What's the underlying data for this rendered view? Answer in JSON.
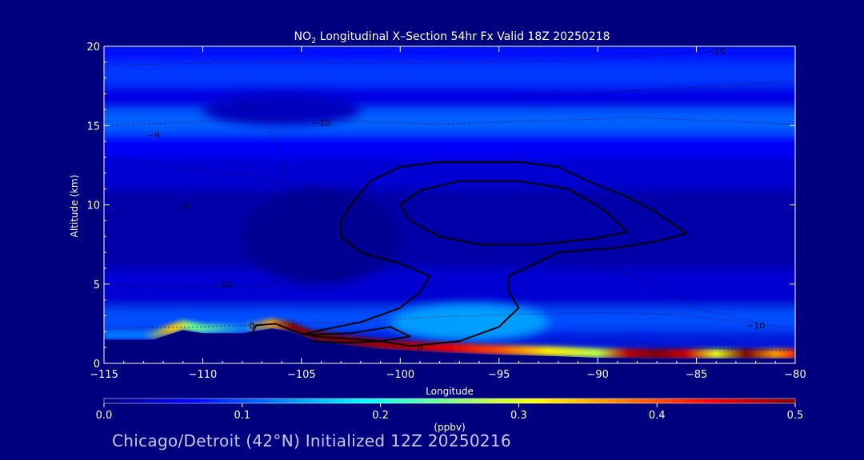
{
  "chart_data": {
    "type": "heatmap",
    "title_prefix": "NO",
    "title_sub": "2",
    "title_rest": " Longitudinal X–Section 54hr  Fx Valid 18Z 20250218",
    "xlabel": "Longitude",
    "ylabel": "Altitude (km)",
    "xlim": [
      -115,
      -80
    ],
    "ylim": [
      0,
      20
    ],
    "x_ticks": [
      -115,
      -110,
      -105,
      -100,
      -95,
      -90,
      -85,
      -80
    ],
    "x_tick_labels": [
      "−115",
      "−110",
      "−105",
      "−100",
      "−95",
      "−90",
      "−85",
      "−80"
    ],
    "y_ticks": [
      0,
      5,
      10,
      15,
      20
    ],
    "y_tick_labels": [
      "0",
      "5",
      "10",
      "15",
      "20"
    ],
    "colorbar": {
      "label": "(ppbv)",
      "range": [
        0.0,
        0.5
      ],
      "ticks": [
        0.0,
        0.1,
        0.2,
        0.3,
        0.4,
        0.5
      ],
      "tick_labels": [
        "0.0",
        "0.1",
        "0.2",
        "0.3",
        "0.4",
        "0.5"
      ],
      "colormap": [
        "#00007f",
        "#0000ff",
        "#0080ff",
        "#00ffff",
        "#80ff80",
        "#ffff00",
        "#ff8000",
        "#ff0000",
        "#800000"
      ]
    },
    "layers": [
      {
        "alt_bottom": 19.0,
        "alt_top": 20.0,
        "value": 0.07
      },
      {
        "alt_bottom": 17.5,
        "alt_top": 19.0,
        "value": 0.09
      },
      {
        "alt_bottom": 16.0,
        "alt_top": 17.5,
        "value": 0.05
      },
      {
        "alt_bottom": 14.5,
        "alt_top": 16.0,
        "value": 0.11
      },
      {
        "alt_bottom": 13.0,
        "alt_top": 14.5,
        "value": 0.06
      },
      {
        "alt_bottom": 11.0,
        "alt_top": 13.0,
        "value": 0.04
      },
      {
        "alt_bottom": 6.0,
        "alt_top": 11.0,
        "value": 0.02
      },
      {
        "alt_bottom": 3.5,
        "alt_top": 6.0,
        "value": 0.04
      },
      {
        "alt_bottom": 2.0,
        "alt_top": 3.5,
        "value": 0.1
      }
    ],
    "blobs": [
      {
        "lon": -96.5,
        "alt": 2.6,
        "r_lon": 4.0,
        "r_alt": 1.2,
        "value": 0.14
      },
      {
        "lon": -106.0,
        "alt": 16.0,
        "r_lon": 4.0,
        "r_alt": 1.0,
        "value": 0.03
      },
      {
        "lon": -104.0,
        "alt": 8.0,
        "r_lon": 4.0,
        "r_alt": 3.0,
        "value": 0.01
      }
    ],
    "terrain": [
      [
        -115,
        1.5
      ],
      [
        -112.5,
        1.5
      ],
      [
        -111,
        2.1
      ],
      [
        -110,
        1.9
      ],
      [
        -108,
        1.9
      ],
      [
        -107.5,
        2.0
      ],
      [
        -106.5,
        2.2
      ],
      [
        -105.5,
        2.0
      ],
      [
        -104.5,
        1.5
      ],
      [
        -103,
        1.2
      ],
      [
        -101,
        0.9
      ],
      [
        -98,
        0.7
      ],
      [
        -95,
        0.55
      ],
      [
        -92,
        0.45
      ],
      [
        -90,
        0.35
      ],
      [
        -87,
        0.3
      ],
      [
        -84,
        0.3
      ],
      [
        -80,
        0.3
      ]
    ],
    "surface_layer": [
      {
        "lon": -113.0,
        "value": 0.12
      },
      {
        "lon": -111.5,
        "value": 0.34
      },
      {
        "lon": -110.5,
        "value": 0.24
      },
      {
        "lon": -108.0,
        "value": 0.12
      },
      {
        "lon": -106.5,
        "value": 0.36
      },
      {
        "lon": -105.5,
        "value": 0.5
      },
      {
        "lon": -103.0,
        "value": 0.5
      },
      {
        "lon": -100.0,
        "value": 0.48
      },
      {
        "lon": -97.5,
        "value": 0.45
      },
      {
        "lon": -95.0,
        "value": 0.4
      },
      {
        "lon": -92.5,
        "value": 0.32
      },
      {
        "lon": -90.0,
        "value": 0.28
      },
      {
        "lon": -88.5,
        "value": 0.47
      },
      {
        "lon": -87.0,
        "value": 0.5
      },
      {
        "lon": -85.5,
        "value": 0.46
      },
      {
        "lon": -84.0,
        "value": 0.3
      },
      {
        "lon": -82.5,
        "value": 0.5
      },
      {
        "lon": -81.0,
        "value": 0.36
      },
      {
        "lon": -80.0,
        "value": 0.42
      }
    ],
    "contours_solid": [
      [
        [
          -102.5,
          10.0
        ],
        [
          -103,
          9.0
        ],
        [
          -103,
          8.0
        ],
        [
          -102,
          7.0
        ],
        [
          -100,
          6.3
        ],
        [
          -98.5,
          5.5
        ],
        [
          -99,
          4.5
        ],
        [
          -100,
          3.5
        ],
        [
          -102,
          2.6
        ],
        [
          -104,
          2.1
        ],
        [
          -105,
          1.8
        ]
      ],
      [
        [
          -102.5,
          10.0
        ],
        [
          -101.5,
          11.5
        ],
        [
          -100,
          12.4
        ],
        [
          -98,
          12.7
        ],
        [
          -94,
          12.7
        ],
        [
          -92,
          12.4
        ],
        [
          -90.5,
          11.5
        ],
        [
          -88.5,
          10.5
        ],
        [
          -87,
          9.5
        ],
        [
          -85.5,
          8.2
        ],
        [
          -87,
          7.7
        ],
        [
          -89,
          7.3
        ],
        [
          -92,
          7.0
        ],
        [
          -94.5,
          5.5
        ],
        [
          -94.5,
          4.5
        ],
        [
          -94.0,
          3.5
        ],
        [
          -95,
          2.3
        ],
        [
          -97,
          1.4
        ],
        [
          -99.5,
          1.1
        ],
        [
          -101,
          1.4
        ],
        [
          -103,
          1.6
        ],
        [
          -104.5,
          1.7
        ]
      ],
      [
        [
          -100,
          10.0
        ],
        [
          -99,
          10.9
        ],
        [
          -97,
          11.5
        ],
        [
          -94,
          11.5
        ],
        [
          -91.5,
          11.0
        ],
        [
          -90.5,
          10.3
        ],
        [
          -89.5,
          9.5
        ],
        [
          -88.5,
          8.3
        ],
        [
          -90,
          7.9
        ],
        [
          -93,
          7.5
        ],
        [
          -96,
          7.5
        ],
        [
          -98,
          8.0
        ],
        [
          -99.5,
          9.0
        ],
        [
          -100,
          10.0
        ]
      ],
      [
        [
          -107.5,
          1.9
        ],
        [
          -107.3,
          2.4
        ],
        [
          -106.3,
          2.5
        ],
        [
          -105.5,
          2.1
        ],
        [
          -104.8,
          1.8
        ],
        [
          -102.5,
          1.9
        ],
        [
          -100.5,
          2.3
        ],
        [
          -99.5,
          1.7
        ],
        [
          -101,
          1.4
        ],
        [
          -103,
          1.3
        ],
        [
          -104.5,
          1.4
        ]
      ]
    ],
    "contours_dashed": [
      [
        [
          -115,
          15.0
        ],
        [
          -111,
          15.2
        ],
        [
          -107,
          15.4
        ],
        [
          -103,
          15.3
        ],
        [
          -98,
          15.1
        ],
        [
          -93,
          15.3
        ],
        [
          -88,
          15.5
        ],
        [
          -84,
          15.3
        ],
        [
          -80,
          15.1
        ]
      ],
      [
        [
          -115,
          13.0
        ],
        [
          -110,
          12.2
        ],
        [
          -106,
          11.5
        ],
        [
          -104,
          11.0
        ],
        [
          -103,
          10.5
        ]
      ],
      [
        [
          -115,
          5.0
        ],
        [
          -111,
          4.8
        ],
        [
          -108,
          4.9
        ],
        [
          -105,
          5.1
        ],
        [
          -103,
          5.6
        ],
        [
          -102.5,
          6.2
        ]
      ],
      [
        [
          -115,
          2.2
        ],
        [
          -110,
          2.3
        ],
        [
          -106,
          2.5
        ],
        [
          -102,
          2.6
        ],
        [
          -99,
          2.9
        ],
        [
          -94,
          3.1
        ],
        [
          -90,
          3.2
        ],
        [
          -86,
          3.1
        ],
        [
          -82,
          2.5
        ],
        [
          -80,
          2.2
        ]
      ],
      [
        [
          -115,
          18.8
        ],
        [
          -108,
          19.0
        ],
        [
          -100,
          18.9
        ],
        [
          -92,
          19.1
        ],
        [
          -86,
          19.5
        ],
        [
          -84,
          20.0
        ]
      ],
      [
        [
          -94,
          16.8
        ],
        [
          -88,
          17.2
        ],
        [
          -84,
          17.5
        ],
        [
          -80,
          17.8
        ]
      ],
      [
        [
          -109,
          17.0
        ],
        [
          -107,
          15.8
        ],
        [
          -106,
          13.0
        ],
        [
          -105.5,
          10.0
        ],
        [
          -106,
          7.0
        ],
        [
          -108,
          5.2
        ]
      ],
      [
        [
          -90,
          6.5
        ],
        [
          -87,
          4.8
        ],
        [
          -85,
          3.5
        ],
        [
          -82,
          2.6
        ]
      ],
      [
        [
          -88.5,
          1.4
        ],
        [
          -86,
          1.0
        ],
        [
          -83,
          0.9
        ],
        [
          -80,
          0.8
        ]
      ]
    ],
    "contour_labels": [
      {
        "lon": -84.0,
        "alt": 19.7,
        "text": "−10"
      },
      {
        "lon": -104.0,
        "alt": 15.2,
        "text": "−10"
      },
      {
        "lon": -112.5,
        "alt": 14.4,
        "text": "−9"
      },
      {
        "lon": -111.0,
        "alt": 9.9,
        "text": "−9"
      },
      {
        "lon": -109.0,
        "alt": 5.0,
        "text": "−10"
      },
      {
        "lon": -107.5,
        "alt": 2.4,
        "text": "0"
      },
      {
        "lon": -99.0,
        "alt": 0.9,
        "text": "0"
      },
      {
        "lon": -82.0,
        "alt": 2.4,
        "text": "−10"
      }
    ]
  },
  "footer": "Chicago/Detroit (42°N) Initialized 12Z 20250216"
}
